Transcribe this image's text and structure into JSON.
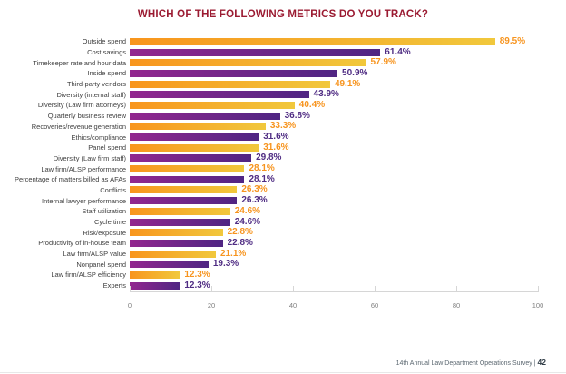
{
  "page": {
    "title": "WHICH OF THE FOLLOWING METRICS DO YOU TRACK?",
    "footer": {
      "text": "14th Annual Law Department Operations Survey",
      "separator": "|",
      "page_number": "42"
    }
  },
  "colors": {
    "title": "#9B1B32",
    "orange_bar_start": "#F8951D",
    "orange_bar_end": "#F1C83C",
    "purple_bar_start": "#93278F",
    "purple_bar_end": "#4F2583",
    "orange_value_label": "#F7941E",
    "purple_value_label": "#4F2C83",
    "category_label": "#3F3F3F",
    "axis": "#D6D6D6",
    "tick_label": "#7F7F7F"
  },
  "chart_data": {
    "type": "bar",
    "orientation": "horizontal",
    "title": "WHICH OF THE FOLLOWING METRICS DO YOU TRACK?",
    "xlabel": "",
    "ylabel": "",
    "xlim": [
      0,
      100
    ],
    "x_ticks": [
      "0",
      "20",
      "40",
      "60",
      "80",
      "100"
    ],
    "grid": false,
    "legend": false,
    "bar_color_pattern": [
      "orange",
      "purple"
    ],
    "categories": [
      "Outside spend",
      "Cost savings",
      "Timekeeper rate and hour data",
      "Inside spend",
      "Third-party vendors",
      "Diversity (internal staff)",
      "Diversity (Law firm attorneys)",
      "Quarterly business review",
      "Recoveries/revenue generation",
      "Ethics/compliance",
      "Panel spend",
      "Diversity (Law firm staff)",
      "Law firm/ALSP performance",
      "Percentage of matters billed as AFAs",
      "Conflicts",
      "Internal lawyer performance",
      "Staff utilization",
      "Cycle time",
      "Risk/exposure",
      "Productivity of in-house team",
      "Law firm/ALSP value",
      "Nonpanel spend",
      "Law firm/ALSP efficiency",
      "Experts"
    ],
    "values": [
      89.5,
      61.4,
      57.9,
      50.9,
      49.1,
      43.9,
      40.4,
      36.8,
      33.3,
      31.6,
      31.6,
      29.8,
      28.1,
      28.1,
      26.3,
      26.3,
      24.6,
      24.6,
      22.8,
      22.8,
      21.1,
      19.3,
      12.3,
      12.3
    ],
    "value_labels": [
      "89.5%",
      "61.4%",
      "57.9%",
      "50.9%",
      "49.1%",
      "43.9%",
      "40.4%",
      "36.8%",
      "33.3%",
      "31.6%",
      "31.6%",
      "29.8%",
      "28.1%",
      "28.1%",
      "26.3%",
      "26.3%",
      "24.6%",
      "24.6%",
      "22.8%",
      "22.8%",
      "21.1%",
      "19.3%",
      "12.3%",
      "12.3%"
    ]
  }
}
